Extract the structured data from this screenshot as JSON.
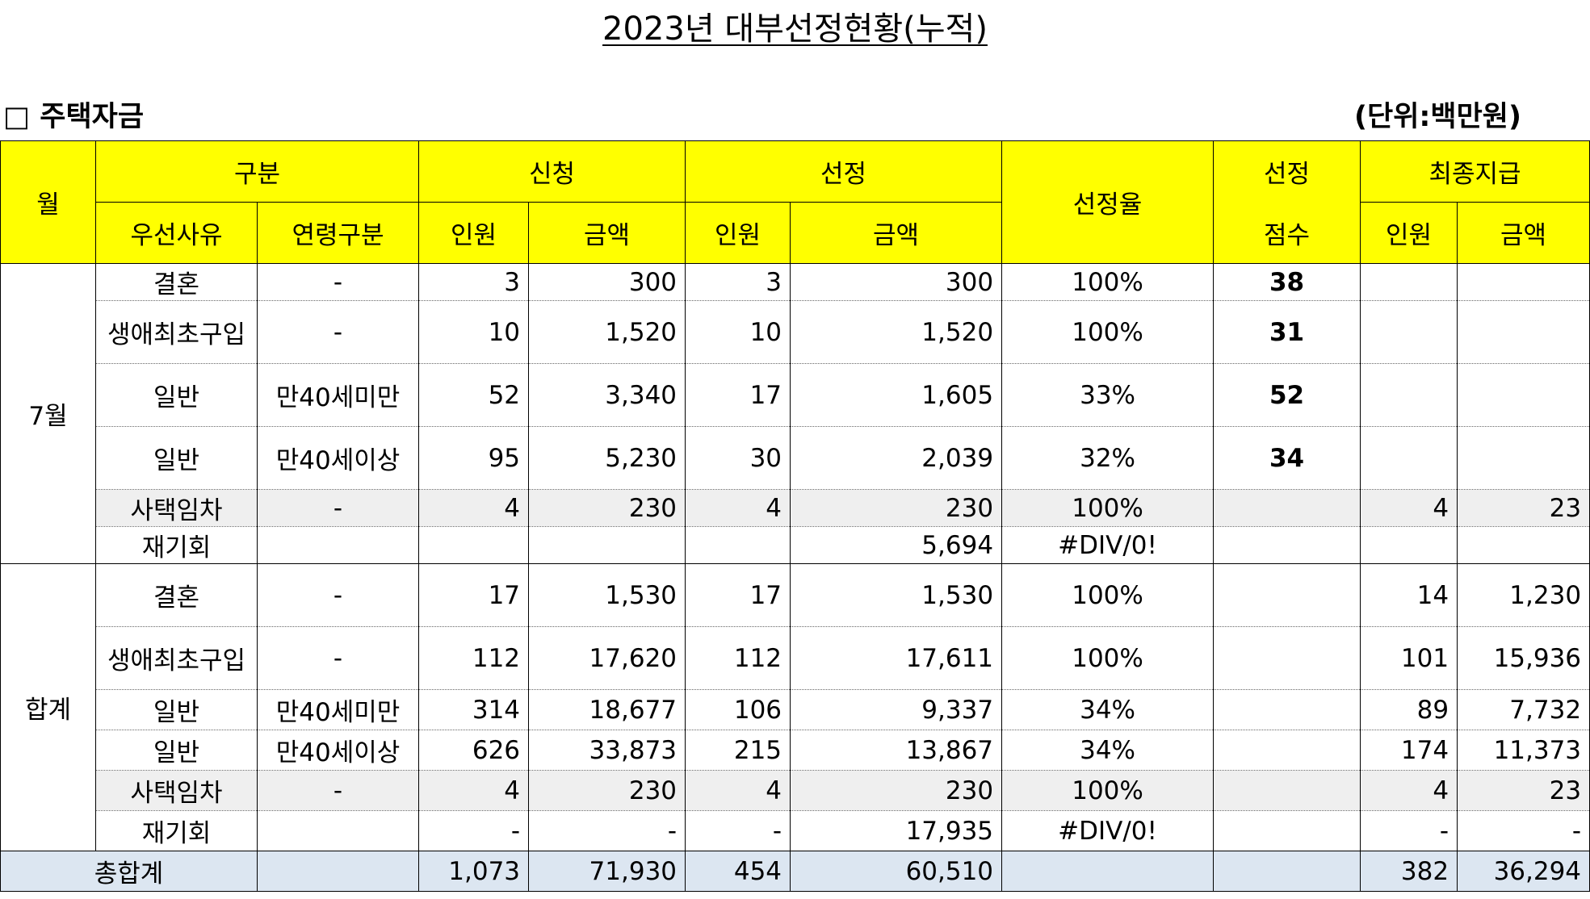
{
  "title": "2023년 대부선정현황(누적)",
  "section_label": "□ 주택자금",
  "unit_label": "(단위:백만원)",
  "colors": {
    "header_bg": "#ffff00",
    "total_bg": "#dce6f1",
    "shaded_row_bg": "#efefef"
  },
  "header": {
    "month": "월",
    "category": "구분",
    "priority_reason": "우선사유",
    "age_group": "연령구분",
    "application": "신청",
    "selection": "선정",
    "selection_rate": "선정율",
    "score_top": "선정",
    "score_bottom": "점수",
    "final_payment": "최종지급",
    "people": "인원",
    "amount": "금액"
  },
  "groups": [
    {
      "month": "7월",
      "rows": [
        {
          "reason": "결혼",
          "age": "-",
          "app_n": "3",
          "app_amt": "300",
          "sel_n": "3",
          "sel_amt": "300",
          "rate": "100%",
          "score": "38",
          "pay_n": "",
          "pay_amt": ""
        },
        {
          "reason": "생애최초구입",
          "age": "-",
          "app_n": "10",
          "app_amt": "1,520",
          "sel_n": "10",
          "sel_amt": "1,520",
          "rate": "100%",
          "score": "31",
          "pay_n": "",
          "pay_amt": ""
        },
        {
          "reason": "일반",
          "age": "만40세미만",
          "app_n": "52",
          "app_amt": "3,340",
          "sel_n": "17",
          "sel_amt": "1,605",
          "rate": "33%",
          "score": "52",
          "pay_n": "",
          "pay_amt": ""
        },
        {
          "reason": "일반",
          "age": "만40세이상",
          "app_n": "95",
          "app_amt": "5,230",
          "sel_n": "30",
          "sel_amt": "2,039",
          "rate": "32%",
          "score": "34",
          "pay_n": "",
          "pay_amt": ""
        },
        {
          "reason": "사택임차",
          "age": "-",
          "app_n": "4",
          "app_amt": "230",
          "sel_n": "4",
          "sel_amt": "230",
          "rate": "100%",
          "score": "",
          "pay_n": "4",
          "pay_amt": "23"
        },
        {
          "reason": "재기회",
          "age": "",
          "app_n": "",
          "app_amt": "",
          "sel_n": "",
          "sel_amt": "5,694",
          "rate": "#DIV/0!",
          "score": "",
          "pay_n": "",
          "pay_amt": ""
        }
      ]
    },
    {
      "month": "합계",
      "rows": [
        {
          "reason": "결혼",
          "age": "-",
          "app_n": "17",
          "app_amt": "1,530",
          "sel_n": "17",
          "sel_amt": "1,530",
          "rate": "100%",
          "score": "",
          "pay_n": "14",
          "pay_amt": "1,230"
        },
        {
          "reason": "생애최초구입",
          "age": "-",
          "app_n": "112",
          "app_amt": "17,620",
          "sel_n": "112",
          "sel_amt": "17,611",
          "rate": "100%",
          "score": "",
          "pay_n": "101",
          "pay_amt": "15,936"
        },
        {
          "reason": "일반",
          "age": "만40세미만",
          "app_n": "314",
          "app_amt": "18,677",
          "sel_n": "106",
          "sel_amt": "9,337",
          "rate": "34%",
          "score": "",
          "pay_n": "89",
          "pay_amt": "7,732"
        },
        {
          "reason": "일반",
          "age": "만40세이상",
          "app_n": "626",
          "app_amt": "33,873",
          "sel_n": "215",
          "sel_amt": "13,867",
          "rate": "34%",
          "score": "",
          "pay_n": "174",
          "pay_amt": "11,373"
        },
        {
          "reason": "사택임차",
          "age": "-",
          "app_n": "4",
          "app_amt": "230",
          "sel_n": "4",
          "sel_amt": "230",
          "rate": "100%",
          "score": "",
          "pay_n": "4",
          "pay_amt": "23"
        },
        {
          "reason": "재기회",
          "age": "",
          "app_n": "-",
          "app_amt": "-",
          "sel_n": "-",
          "sel_amt": "17,935",
          "rate": "#DIV/0!",
          "score": "",
          "pay_n": "-",
          "pay_amt": "-"
        }
      ]
    }
  ],
  "total": {
    "label": "총합계",
    "age": "",
    "app_n": "1,073",
    "app_amt": "71,930",
    "sel_n": "454",
    "sel_amt": "60,510",
    "rate": "",
    "score": "",
    "pay_n": "382",
    "pay_amt": "36,294"
  }
}
